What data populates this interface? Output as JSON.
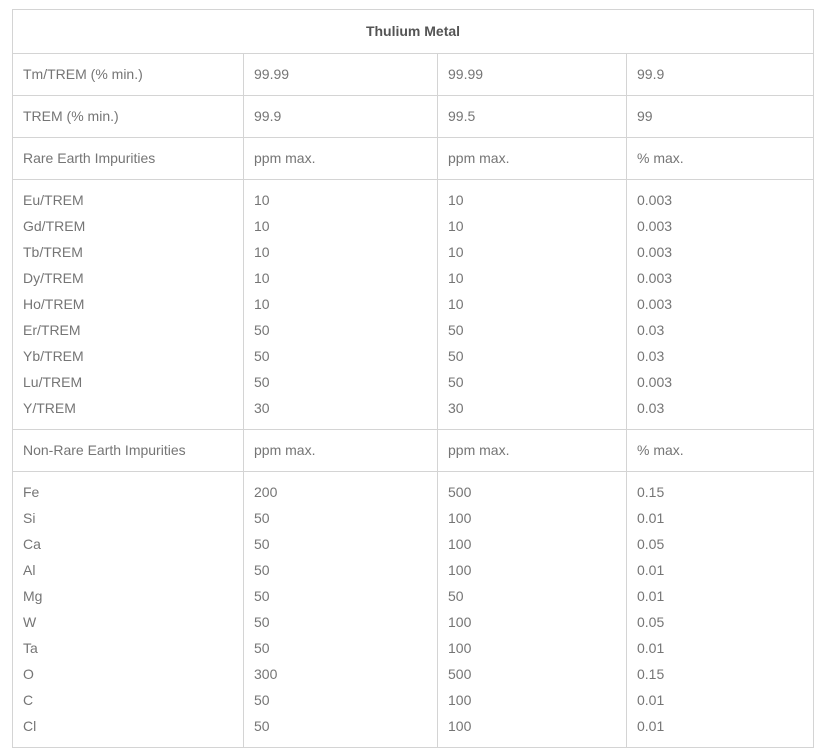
{
  "colors": {
    "border": "#d4d4d4",
    "text": "#757575",
    "title": "#545454",
    "background": "#ffffff"
  },
  "table": {
    "title": "Thulium Metal",
    "purity_rows": [
      {
        "label": "Tm/TREM (% min.)",
        "values": [
          "99.99",
          "99.99",
          "99.9"
        ]
      },
      {
        "label": "TREM (% min.)",
        "values": [
          "99.9",
          "99.5",
          "99"
        ]
      }
    ],
    "rare_earth": {
      "section_label": "Rare Earth Impurities",
      "unit_headers": [
        "ppm max.",
        "ppm max.",
        "% max."
      ],
      "elements": [
        "Eu/TREM",
        "Gd/TREM",
        "Tb/TREM",
        "Dy/TREM",
        "Ho/TREM",
        "Er/TREM",
        "Yb/TREM",
        "Lu/TREM",
        "Y/TREM"
      ],
      "col1": [
        "10",
        "10",
        "10",
        "10",
        "10",
        "50",
        "50",
        "50",
        "30"
      ],
      "col2": [
        "10",
        "10",
        "10",
        "10",
        "10",
        "50",
        "50",
        "50",
        "30"
      ],
      "col3": [
        "0.003",
        "0.003",
        "0.003",
        "0.003",
        "0.003",
        "0.03",
        "0.03",
        "0.003",
        "0.03"
      ]
    },
    "non_rare_earth": {
      "section_label": "Non-Rare Earth Impurities",
      "unit_headers": [
        "ppm max.",
        "ppm max.",
        "% max."
      ],
      "elements": [
        "Fe",
        "Si",
        "Ca",
        "Al",
        "Mg",
        "W",
        "Ta",
        "O",
        "C",
        "Cl"
      ],
      "col1": [
        "200",
        "50",
        "50",
        "50",
        "50",
        "50",
        "50",
        "300",
        "50",
        "50"
      ],
      "col2": [
        "500",
        "100",
        "100",
        "100",
        "50",
        "100",
        "100",
        "500",
        "100",
        "100"
      ],
      "col3": [
        "0.15",
        "0.01",
        "0.05",
        "0.01",
        "0.01",
        "0.05",
        "0.01",
        "0.15",
        "0.01",
        "0.01"
      ]
    }
  }
}
